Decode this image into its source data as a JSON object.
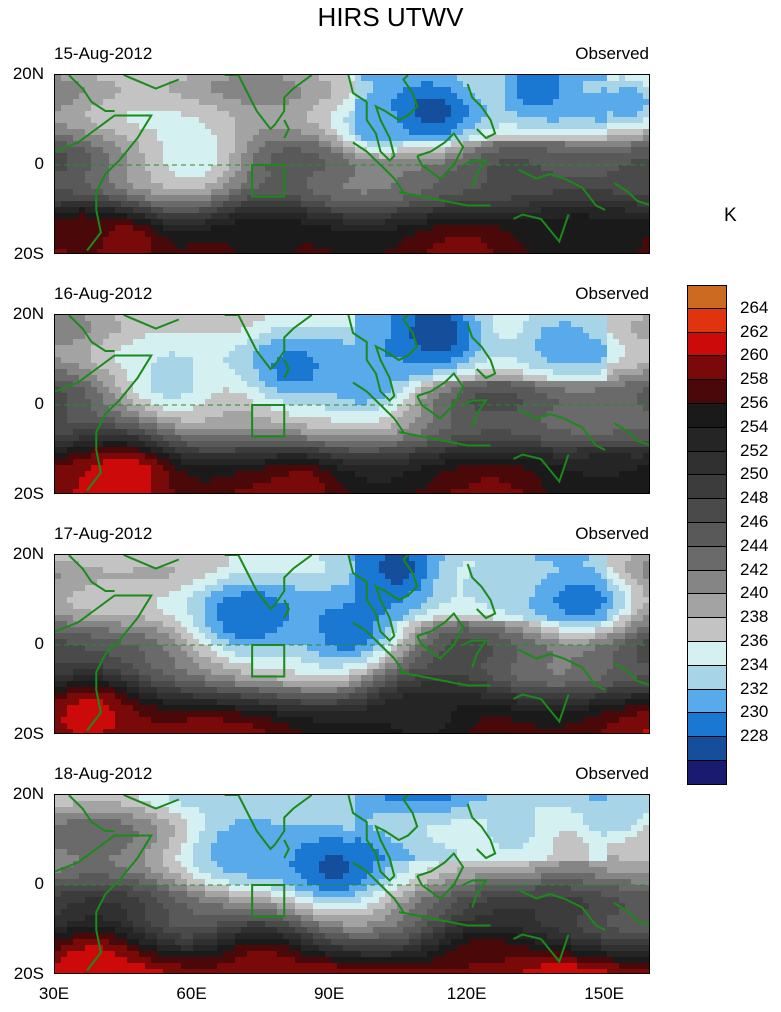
{
  "title": "HIRS UTWV",
  "unit": "K",
  "lat_labels": [
    "20N",
    "0",
    "20S"
  ],
  "lon_labels": [
    "30E",
    "60E",
    "90E",
    "120E",
    "150E"
  ],
  "panels": [
    {
      "date": "15-Aug-2012",
      "label": "Observed",
      "seed": 11,
      "features": [
        {
          "type": "cold",
          "lon": 112,
          "lat": 12,
          "r": 9,
          "v": 229
        },
        {
          "type": "cold",
          "lon": 135,
          "lat": 17,
          "r": 6,
          "v": 230
        },
        {
          "type": "cold",
          "lon": 100,
          "lat": 8,
          "r": 5,
          "v": 233
        },
        {
          "type": "cold",
          "lon": 60,
          "lat": 2,
          "r": 10,
          "v": 236
        },
        {
          "type": "cold",
          "lon": 155,
          "lat": 14,
          "r": 6,
          "v": 232
        },
        {
          "type": "warm",
          "lon": 45,
          "lat": -17,
          "r": 6,
          "v": 262
        },
        {
          "type": "warm",
          "lon": 36,
          "lat": -14,
          "r": 5,
          "v": 259
        },
        {
          "type": "warm",
          "lon": 75,
          "lat": -18,
          "r": 8,
          "v": 257
        },
        {
          "type": "warm",
          "lon": 145,
          "lat": -17,
          "r": 12,
          "v": 257
        }
      ]
    },
    {
      "date": "16-Aug-2012",
      "label": "Observed",
      "seed": 23,
      "features": [
        {
          "type": "cold",
          "lon": 113,
          "lat": 16,
          "r": 8,
          "v": 228
        },
        {
          "type": "cold",
          "lon": 82,
          "lat": 8,
          "r": 12,
          "v": 231
        },
        {
          "type": "cold",
          "lon": 98,
          "lat": 5,
          "r": 8,
          "v": 232
        },
        {
          "type": "cold",
          "lon": 55,
          "lat": 4,
          "r": 10,
          "v": 235
        },
        {
          "type": "cold",
          "lon": 140,
          "lat": 14,
          "r": 7,
          "v": 233
        },
        {
          "type": "warm",
          "lon": 45,
          "lat": -16,
          "r": 9,
          "v": 264
        },
        {
          "type": "warm",
          "lon": 84,
          "lat": -18,
          "r": 5,
          "v": 261
        },
        {
          "type": "warm",
          "lon": 150,
          "lat": -18,
          "r": 8,
          "v": 256
        }
      ]
    },
    {
      "date": "17-Aug-2012",
      "label": "Observed",
      "seed": 37,
      "features": [
        {
          "type": "cold",
          "lon": 72,
          "lat": 6,
          "r": 12,
          "v": 230
        },
        {
          "type": "cold",
          "lon": 95,
          "lat": 2,
          "r": 10,
          "v": 230
        },
        {
          "type": "cold",
          "lon": 105,
          "lat": 17,
          "r": 8,
          "v": 229
        },
        {
          "type": "cold",
          "lon": 145,
          "lat": 10,
          "r": 8,
          "v": 231
        },
        {
          "type": "cold",
          "lon": 125,
          "lat": 14,
          "r": 6,
          "v": 235
        },
        {
          "type": "warm",
          "lon": 38,
          "lat": -15,
          "r": 9,
          "v": 263
        },
        {
          "type": "warm",
          "lon": 110,
          "lat": -16,
          "r": 10,
          "v": 255
        }
      ]
    },
    {
      "date": "18-Aug-2012",
      "label": "Observed",
      "seed": 53,
      "features": [
        {
          "type": "cold",
          "lon": 90,
          "lat": 4,
          "r": 13,
          "v": 229
        },
        {
          "type": "cold",
          "lon": 72,
          "lat": 8,
          "r": 10,
          "v": 232
        },
        {
          "type": "cold",
          "lon": 130,
          "lat": 12,
          "r": 8,
          "v": 235
        },
        {
          "type": "cold",
          "lon": 152,
          "lat": 15,
          "r": 6,
          "v": 234
        },
        {
          "type": "warm",
          "lon": 38,
          "lat": -17,
          "r": 8,
          "v": 263
        },
        {
          "type": "warm",
          "lon": 75,
          "lat": -18,
          "r": 9,
          "v": 261
        },
        {
          "type": "warm",
          "lon": 123,
          "lat": -17,
          "r": 9,
          "v": 260
        }
      ]
    }
  ],
  "colorbar": {
    "levels": [
      264,
      262,
      260,
      258,
      256,
      254,
      252,
      250,
      248,
      246,
      244,
      242,
      240,
      238,
      236,
      234,
      232,
      230,
      228
    ],
    "colors": [
      "#cc6a22",
      "#e0340e",
      "#cc0a0a",
      "#7a0a0a",
      "#4a0808",
      "#1a1a1a",
      "#252525",
      "#303030",
      "#3c3c3c",
      "#4a4a4a",
      "#595959",
      "#6a6a6a",
      "#858585",
      "#a3a3a3",
      "#c3c3c3",
      "#d4f0f0",
      "#a8d4e8",
      "#58aaea",
      "#1a78d2",
      "#154e9a",
      "#1a1a70"
    ]
  }
}
